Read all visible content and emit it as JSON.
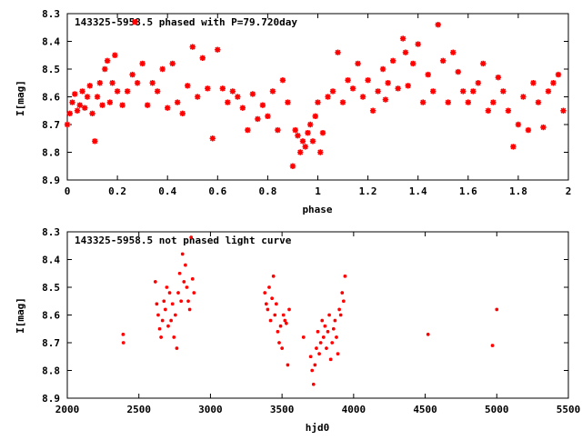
{
  "chart_data": [
    {
      "type": "scatter",
      "title": "143325-5958.5 phased with P=79.720day",
      "xlabel": "phase",
      "ylabel": "I[mag]",
      "xlim": [
        0,
        2
      ],
      "ylim": [
        8.3,
        8.9
      ],
      "y_inverted": true,
      "grid": false,
      "marker_color": "#ff0000",
      "xticks": [
        "0",
        "0.2",
        "0.4",
        "0.6",
        "0.8",
        "1",
        "1.2",
        "1.4",
        "1.6",
        "1.8",
        "2"
      ],
      "yticks": [
        "8.3",
        "8.4",
        "8.5",
        "8.6",
        "8.7",
        "8.8",
        "8.9"
      ],
      "series": [
        {
          "x": [
            0.0,
            0.01,
            0.02,
            0.03,
            0.04,
            0.05,
            0.06,
            0.07,
            0.08,
            0.09,
            0.1,
            0.11,
            0.12,
            0.13,
            0.14,
            0.15,
            0.16,
            0.17,
            0.18,
            0.19,
            0.2,
            0.22,
            0.24,
            0.26,
            0.27,
            0.28,
            0.3,
            0.32,
            0.34,
            0.36,
            0.38,
            0.4,
            0.42,
            0.44,
            0.46,
            0.48,
            0.5,
            0.52,
            0.54,
            0.56,
            0.58,
            0.6,
            0.62,
            0.64,
            0.66,
            0.68,
            0.7,
            0.72,
            0.74,
            0.76,
            0.78,
            0.8,
            0.82,
            0.84,
            0.86,
            0.88,
            0.9,
            0.91,
            0.92,
            0.93,
            0.94,
            0.95,
            0.96,
            0.97,
            0.98,
            0.99,
            1.0,
            1.01,
            1.02,
            1.04,
            1.06,
            1.08,
            1.1,
            1.12,
            1.14,
            1.16,
            1.18,
            1.2,
            1.22,
            1.24,
            1.26,
            1.27,
            1.28,
            1.3,
            1.32,
            1.34,
            1.35,
            1.36,
            1.38,
            1.4,
            1.42,
            1.44,
            1.46,
            1.48,
            1.5,
            1.52,
            1.54,
            1.56,
            1.58,
            1.6,
            1.62,
            1.64,
            1.66,
            1.68,
            1.7,
            1.72,
            1.74,
            1.76,
            1.78,
            1.8,
            1.82,
            1.84,
            1.86,
            1.88,
            1.9,
            1.92,
            1.94,
            1.96,
            1.98
          ],
          "y": [
            8.7,
            8.66,
            8.62,
            8.59,
            8.65,
            8.63,
            8.58,
            8.64,
            8.6,
            8.56,
            8.66,
            8.76,
            8.6,
            8.55,
            8.63,
            8.5,
            8.47,
            8.62,
            8.55,
            8.45,
            8.58,
            8.63,
            8.58,
            8.52,
            8.33,
            8.55,
            8.48,
            8.63,
            8.55,
            8.58,
            8.5,
            8.64,
            8.48,
            8.62,
            8.66,
            8.56,
            8.42,
            8.6,
            8.46,
            8.57,
            8.75,
            8.43,
            8.57,
            8.62,
            8.58,
            8.6,
            8.64,
            8.72,
            8.59,
            8.68,
            8.63,
            8.67,
            8.58,
            8.72,
            8.54,
            8.62,
            8.85,
            8.72,
            8.74,
            8.8,
            8.76,
            8.78,
            8.73,
            8.7,
            8.76,
            8.67,
            8.62,
            8.8,
            8.73,
            8.6,
            8.58,
            8.44,
            8.62,
            8.54,
            8.57,
            8.48,
            8.6,
            8.54,
            8.65,
            8.58,
            8.5,
            8.61,
            8.55,
            8.47,
            8.57,
            8.39,
            8.44,
            8.56,
            8.48,
            8.41,
            8.62,
            8.52,
            8.58,
            8.34,
            8.47,
            8.62,
            8.44,
            8.51,
            8.58,
            8.62,
            8.58,
            8.55,
            8.48,
            8.65,
            8.62,
            8.53,
            8.58,
            8.65,
            8.78,
            8.7,
            8.6,
            8.72,
            8.55,
            8.62,
            8.71,
            8.58,
            8.55,
            8.52,
            8.65
          ]
        }
      ]
    },
    {
      "type": "scatter",
      "title": "143325-5958.5 not phased light curve",
      "xlabel": "hjd0",
      "ylabel": "I[mag]",
      "xlim": [
        2000,
        5500
      ],
      "ylim": [
        8.3,
        8.9
      ],
      "y_inverted": true,
      "grid": false,
      "marker_color": "#ff0000",
      "xticks": [
        "2000",
        "2500",
        "3000",
        "3500",
        "4000",
        "4500",
        "5000",
        "5500"
      ],
      "yticks": [
        "8.3",
        "8.4",
        "8.5",
        "8.6",
        "8.7",
        "8.8",
        "8.9"
      ],
      "series": [
        {
          "x": [
            2390,
            2392,
            2615,
            2625,
            2635,
            2645,
            2655,
            2665,
            2675,
            2685,
            2695,
            2705,
            2715,
            2725,
            2735,
            2745,
            2755,
            2765,
            2775,
            2785,
            2795,
            2805,
            2815,
            2825,
            2835,
            2845,
            2855,
            2865,
            2875,
            2885,
            3380,
            3390,
            3400,
            3410,
            3420,
            3430,
            3440,
            3450,
            3460,
            3470,
            3480,
            3490,
            3500,
            3510,
            3520,
            3530,
            3540,
            3550,
            3650,
            3700,
            3710,
            3720,
            3730,
            3740,
            3750,
            3760,
            3770,
            3780,
            3790,
            3800,
            3810,
            3820,
            3830,
            3840,
            3850,
            3860,
            3870,
            3880,
            3890,
            3900,
            3910,
            3920,
            3930,
            3940,
            4520,
            4970,
            5000
          ],
          "y": [
            8.67,
            8.7,
            8.48,
            8.56,
            8.6,
            8.65,
            8.68,
            8.62,
            8.55,
            8.58,
            8.5,
            8.64,
            8.52,
            8.62,
            8.56,
            8.68,
            8.6,
            8.72,
            8.52,
            8.45,
            8.55,
            8.38,
            8.48,
            8.42,
            8.5,
            8.55,
            8.58,
            8.32,
            8.47,
            8.52,
            8.52,
            8.56,
            8.58,
            8.5,
            8.62,
            8.54,
            8.46,
            8.6,
            8.56,
            8.66,
            8.7,
            8.64,
            8.72,
            8.6,
            8.62,
            8.63,
            8.78,
            8.58,
            8.68,
            8.75,
            8.8,
            8.85,
            8.78,
            8.72,
            8.66,
            8.74,
            8.7,
            8.62,
            8.68,
            8.64,
            8.72,
            8.66,
            8.6,
            8.76,
            8.7,
            8.65,
            8.62,
            8.68,
            8.74,
            8.58,
            8.6,
            8.52,
            8.55,
            8.46,
            8.67,
            8.71,
            8.58
          ]
        }
      ]
    }
  ]
}
